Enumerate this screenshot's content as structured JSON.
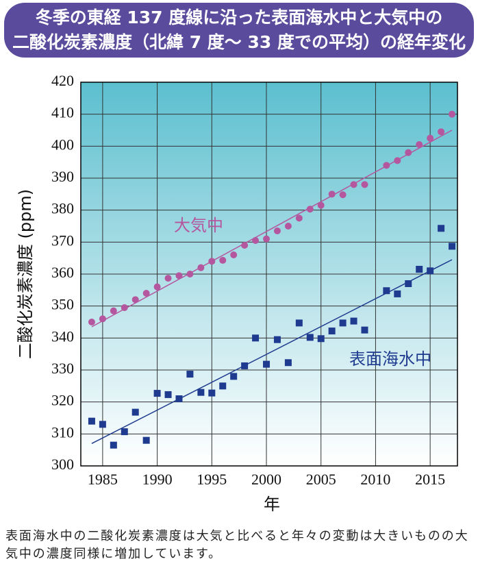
{
  "chart_data": {
    "type": "scatter",
    "title": [
      "冬季の東経 137 度線に沿った表面海水中と大気中の",
      "二酸化炭素濃度（北緯 7 度～ 33 度での平均）の経年変化"
    ],
    "y_label": "二酸化炭素濃度 (ppm)",
    "x_label": "年",
    "caption": "表面海水中の二酸化炭素濃度は大気と比べると年々の変動は大きいものの大気中の濃度同様に増加しています。",
    "xlim": [
      1983,
      2017.5
    ],
    "xticks": [
      1985,
      1990,
      1995,
      2000,
      2005,
      2010,
      2015
    ],
    "ylim": [
      300,
      420
    ],
    "yticks": [
      300,
      310,
      320,
      330,
      340,
      350,
      360,
      370,
      380,
      390,
      400,
      410,
      420
    ],
    "grid": true,
    "x": [
      1984,
      1985,
      1986,
      1987,
      1988,
      1989,
      1990,
      1991,
      1992,
      1993,
      1994,
      1995,
      1996,
      1997,
      1998,
      1999,
      2000,
      2001,
      2002,
      2003,
      2004,
      2005,
      2006,
      2007,
      2008,
      2009,
      2010,
      2011,
      2012,
      2013,
      2014,
      2015,
      2016,
      2017
    ],
    "series": [
      {
        "name": "大気中",
        "color": "#b4579f",
        "marker": "circle",
        "values": [
          345,
          346,
          348.5,
          349.5,
          352,
          354,
          356,
          358.7,
          359.5,
          360,
          362,
          364,
          364.3,
          366,
          369,
          370.5,
          371,
          373.5,
          375,
          377.5,
          380.3,
          381.5,
          385,
          384.8,
          388,
          388,
          null,
          394,
          395.5,
          398,
          400.5,
          402.5,
          404.5,
          410
        ],
        "trend": {
          "x": [
            1984,
            2017
          ],
          "values": [
            343.5,
            405
          ]
        }
      },
      {
        "name": "表面海水中",
        "color": "#1f3b8f",
        "marker": "square",
        "values": [
          314,
          313,
          306.5,
          310.7,
          316.8,
          308,
          322.7,
          322.3,
          321,
          328.7,
          323,
          322.8,
          325,
          328,
          331.3,
          340,
          331.8,
          339.5,
          332.3,
          344.7,
          340.2,
          339.8,
          342.2,
          344.7,
          345.3,
          342.5,
          null,
          354.8,
          353.8,
          357,
          361.5,
          361,
          374.3,
          368.7
        ],
        "trend": {
          "x": [
            1984,
            2017
          ],
          "values": [
            307,
            364.5
          ]
        }
      }
    ]
  }
}
